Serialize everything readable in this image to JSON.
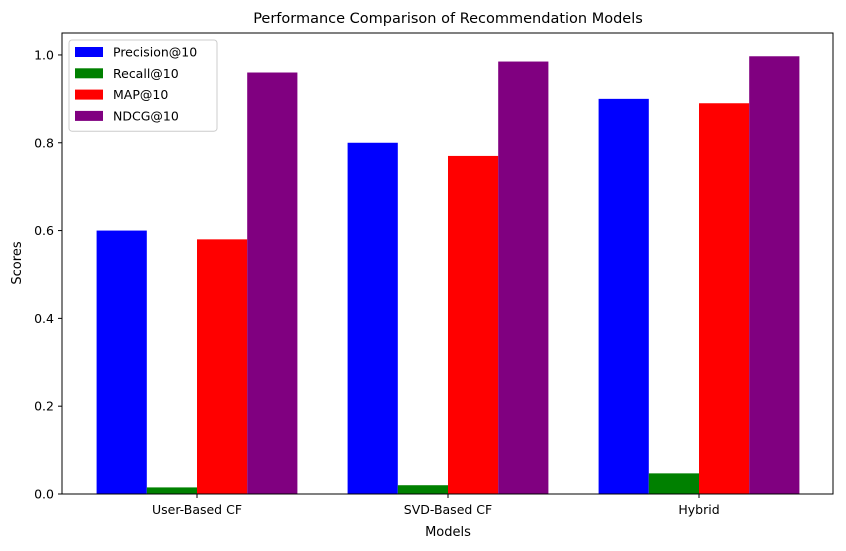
{
  "chart_data": {
    "type": "bar",
    "title": "Performance Comparison of Recommendation Models",
    "xlabel": "Models",
    "ylabel": "Scores",
    "categories": [
      "User-Based CF",
      "SVD-Based CF",
      "Hybrid"
    ],
    "series": [
      {
        "name": "Precision@10",
        "color": "#0000ff",
        "values": [
          0.6,
          0.8,
          0.9
        ]
      },
      {
        "name": "Recall@10",
        "color": "#008000",
        "values": [
          0.015,
          0.02,
          0.047
        ]
      },
      {
        "name": "MAP@10",
        "color": "#ff0000",
        "values": [
          0.58,
          0.77,
          0.89
        ]
      },
      {
        "name": "NDCG@10",
        "color": "#800080",
        "values": [
          0.96,
          0.985,
          0.997
        ]
      }
    ],
    "ylim": [
      0,
      1.05
    ],
    "yticks": [
      "0.0",
      "0.2",
      "0.4",
      "0.6",
      "0.8",
      "1.0"
    ],
    "ytick_values": [
      0,
      0.2,
      0.4,
      0.6,
      0.8,
      1.0
    ],
    "grid": false,
    "legend_position": "top-left"
  }
}
